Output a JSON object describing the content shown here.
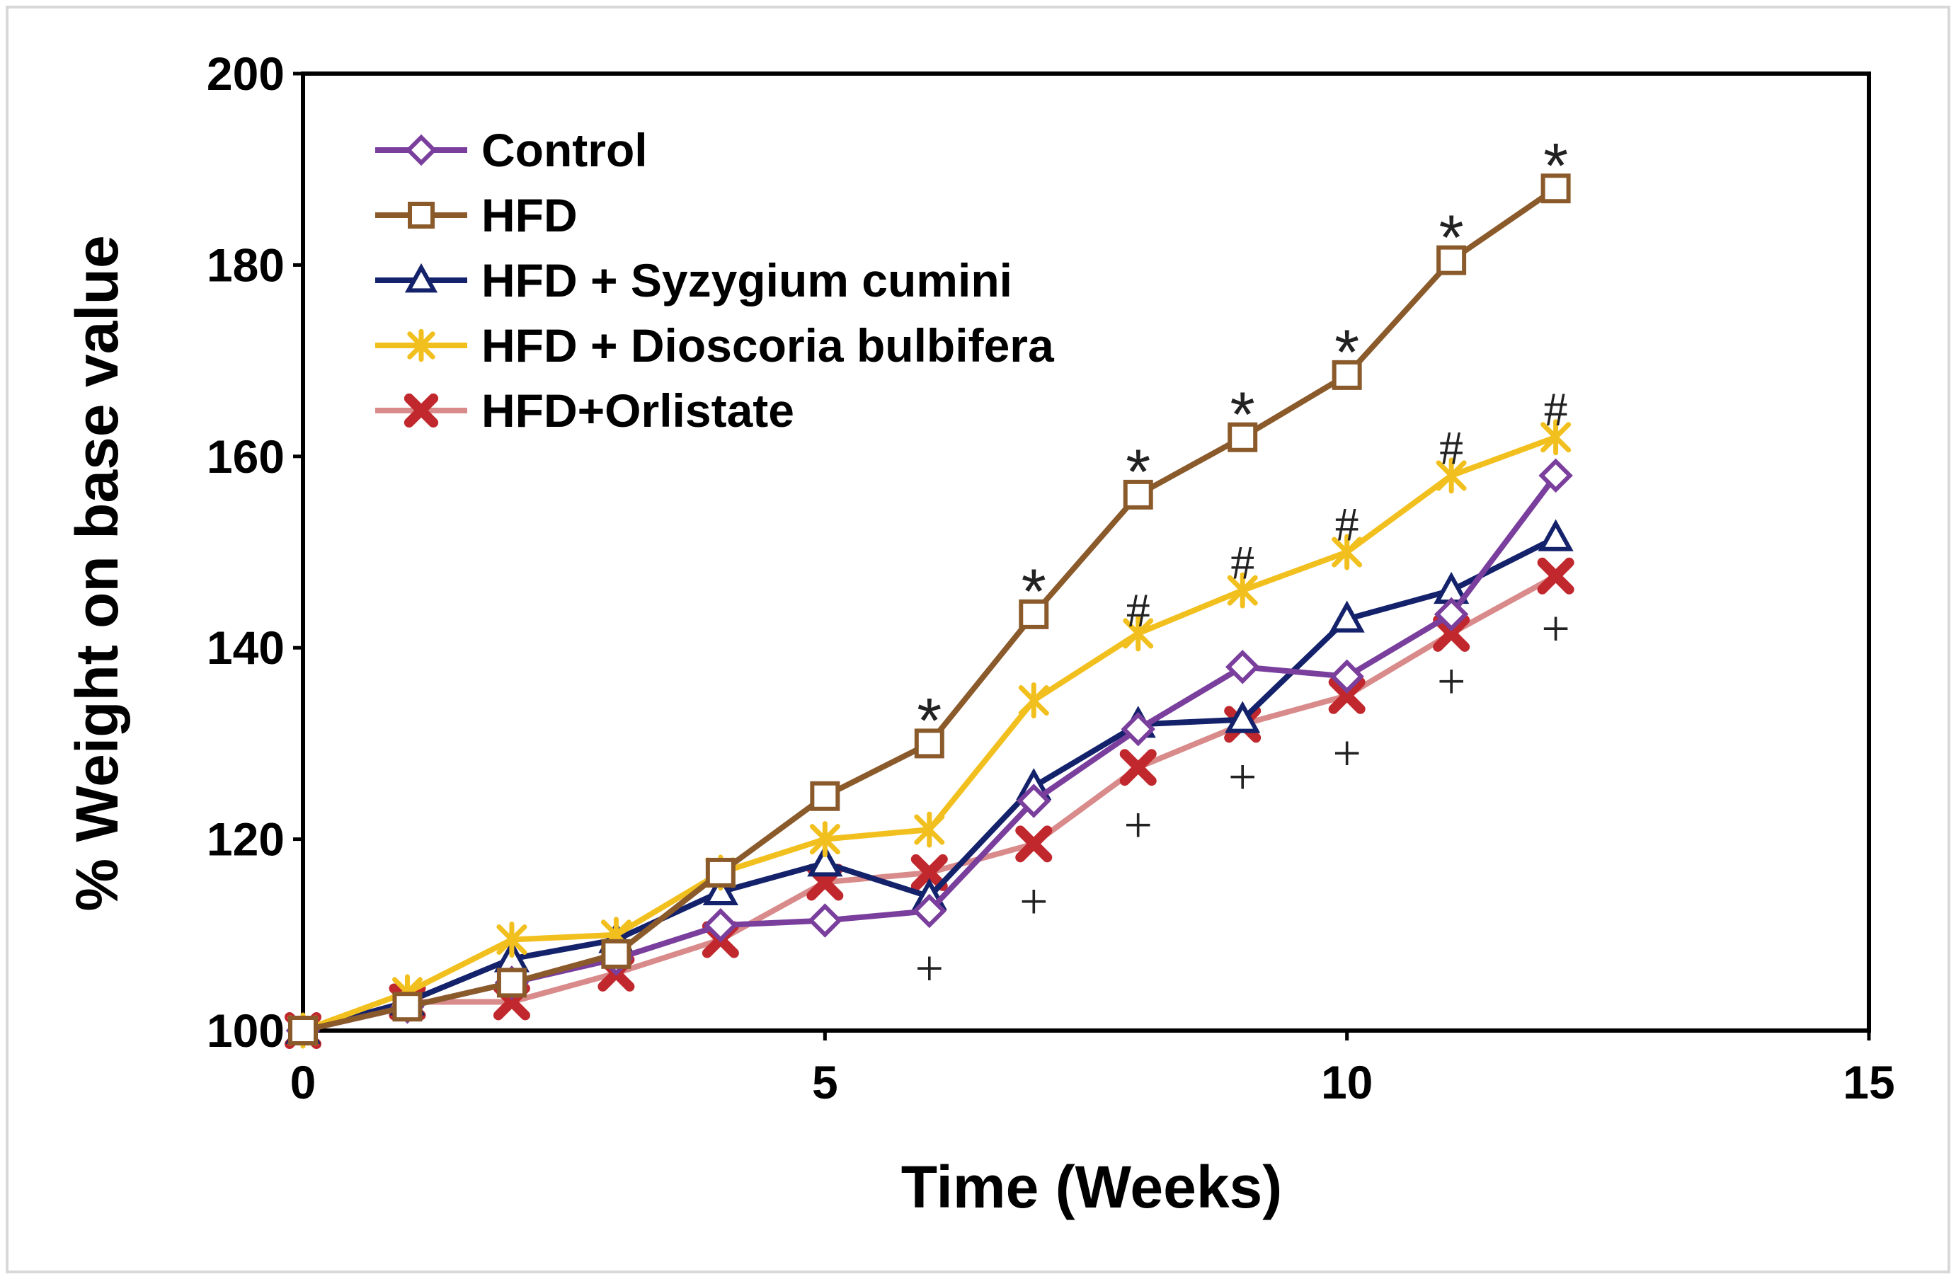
{
  "chart_data": {
    "type": "line",
    "xlabel": "Time (Weeks)",
    "ylabel": "% Weight on base value",
    "xlim": [
      0,
      15
    ],
    "ylim": [
      100,
      200
    ],
    "xticks": [
      "0",
      "5",
      "10",
      "15"
    ],
    "yticks": [
      "100",
      "120",
      "140",
      "160",
      "180",
      "200"
    ],
    "xtick_values": [
      0,
      5,
      10,
      15
    ],
    "ytick_values": [
      100,
      120,
      140,
      160,
      180,
      200
    ],
    "grid": false,
    "legend_position": "top-left",
    "series": [
      {
        "name": "HFD+Orlistate",
        "color": "#d98a8a",
        "marker": "x-filled",
        "marker_color": "#c0282d",
        "x": [
          0,
          1,
          2,
          3,
          4,
          5,
          6,
          7,
          8,
          9,
          10,
          11,
          12
        ],
        "y": [
          100,
          103,
          103,
          106,
          109.5,
          115.5,
          116.5,
          119.5,
          127.5,
          132,
          135,
          141.5,
          147.5
        ]
      },
      {
        "name": "HFD + Syzygium cumini",
        "color": "#14226b",
        "marker": "triangle-open",
        "marker_color": "#14226b",
        "x": [
          0,
          1,
          2,
          3,
          4,
          5,
          6,
          7,
          8,
          9,
          10,
          11,
          12
        ],
        "y": [
          100,
          103,
          107.5,
          109.5,
          114.5,
          117.5,
          114,
          125.5,
          132,
          132.5,
          143,
          146,
          151.5
        ]
      },
      {
        "name": "Control",
        "color": "#7a3e9d",
        "marker": "diamond-open",
        "marker_color": "#7a3e9d",
        "x": [
          0,
          1,
          2,
          3,
          4,
          5,
          6,
          7,
          8,
          9,
          10,
          11,
          12
        ],
        "y": [
          100,
          102.5,
          105,
          107.5,
          111,
          111.5,
          112.5,
          124,
          131.5,
          138,
          137,
          143.5,
          158
        ]
      },
      {
        "name": "HFD + Dioscoria bulbifera",
        "color": "#f2c01e",
        "marker": "star",
        "marker_color": "#f2c01e",
        "x": [
          0,
          1,
          2,
          3,
          4,
          5,
          6,
          7,
          8,
          9,
          10,
          11,
          12
        ],
        "y": [
          100,
          104,
          109.5,
          110,
          116.5,
          120,
          121,
          134.5,
          141.5,
          146,
          150,
          158,
          162
        ]
      },
      {
        "name": "HFD",
        "color": "#8b5a2b",
        "marker": "square-open",
        "marker_color": "#8b5a2b",
        "x": [
          0,
          1,
          2,
          3,
          4,
          5,
          6,
          7,
          8,
          9,
          10,
          11,
          12
        ],
        "y": [
          100,
          102.5,
          105,
          108,
          116.5,
          124.5,
          130,
          143.5,
          156,
          162,
          168.5,
          180.5,
          188
        ]
      }
    ],
    "legend_order": [
      "Control",
      "HFD",
      "HFD + Syzygium cumini",
      "HFD + Dioscoria bulbifera",
      "HFD+Orlistate"
    ],
    "annotations": [
      {
        "text": "*",
        "x": 6,
        "y": 133.5,
        "style": "star"
      },
      {
        "text": "*",
        "x": 7,
        "y": 147,
        "style": "star"
      },
      {
        "text": "*",
        "x": 8,
        "y": 159.5,
        "style": "star"
      },
      {
        "text": "*",
        "x": 9,
        "y": 165.5,
        "style": "star"
      },
      {
        "text": "*",
        "x": 10,
        "y": 172,
        "style": "star"
      },
      {
        "text": "*",
        "x": 11,
        "y": 184,
        "style": "star"
      },
      {
        "text": "*",
        "x": 12,
        "y": 191.5,
        "style": "star"
      },
      {
        "text": "#",
        "x": 8,
        "y": 144,
        "style": "hash"
      },
      {
        "text": "#",
        "x": 9,
        "y": 149,
        "style": "hash"
      },
      {
        "text": "#",
        "x": 10,
        "y": 153,
        "style": "hash"
      },
      {
        "text": "#",
        "x": 11,
        "y": 161,
        "style": "hash"
      },
      {
        "text": "#",
        "x": 12,
        "y": 165,
        "style": "hash"
      },
      {
        "text": "+",
        "x": 6,
        "y": 106.5,
        "style": "plus"
      },
      {
        "text": "+",
        "x": 7,
        "y": 113.5,
        "style": "plus"
      },
      {
        "text": "+",
        "x": 8,
        "y": 121.5,
        "style": "plus"
      },
      {
        "text": "+",
        "x": 9,
        "y": 126.5,
        "style": "plus"
      },
      {
        "text": "+",
        "x": 10,
        "y": 129,
        "style": "plus"
      },
      {
        "text": "+",
        "x": 11,
        "y": 136.5,
        "style": "plus"
      },
      {
        "text": "+",
        "x": 12,
        "y": 142,
        "style": "plus"
      }
    ]
  }
}
